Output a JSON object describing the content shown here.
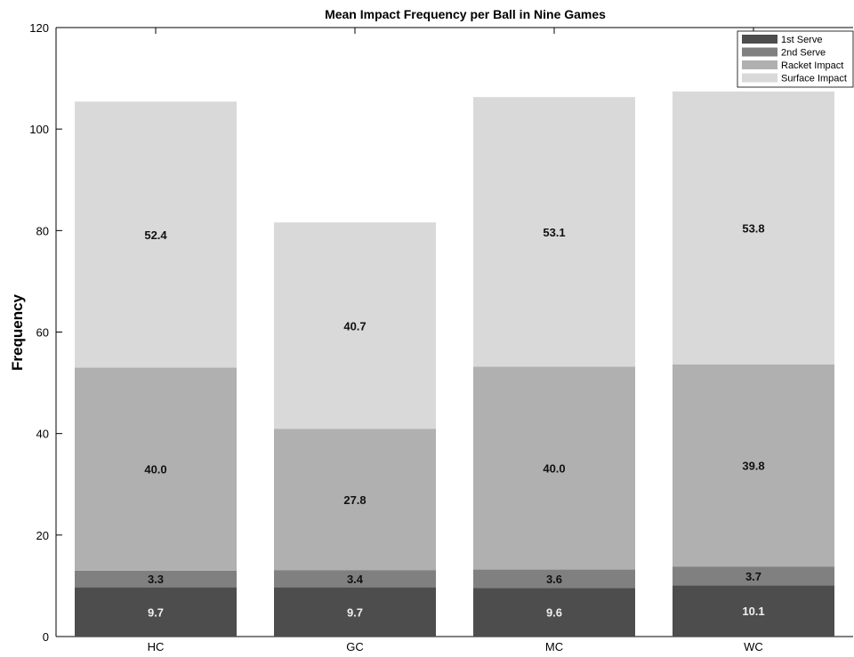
{
  "chart_data": {
    "type": "bar",
    "stacked": true,
    "title": "Mean Impact Frequency per Ball in Nine Games",
    "xlabel": "",
    "ylabel": "Frequency",
    "ylim": [
      0,
      120
    ],
    "yticks": [
      0,
      20,
      40,
      60,
      80,
      100,
      120
    ],
    "categories": [
      "HC",
      "GC",
      "MC",
      "WC"
    ],
    "series": [
      {
        "name": "1st Serve",
        "values": [
          9.7,
          9.7,
          9.6,
          10.1
        ],
        "labels": [
          "9.7",
          "9.7",
          "9.6",
          "10.1"
        ],
        "color": "#4d4d4d",
        "labelColor": "#f0f0f0"
      },
      {
        "name": "2nd Serve",
        "values": [
          3.3,
          3.4,
          3.6,
          3.7
        ],
        "labels": [
          "3.3",
          "3.4",
          "3.6",
          "3.7"
        ],
        "color": "#808080",
        "labelColor": "#111111"
      },
      {
        "name": "Racket Impact",
        "values": [
          40.0,
          27.8,
          40.0,
          39.8
        ],
        "labels": [
          "40.0",
          "27.8",
          "40.0",
          "39.8"
        ],
        "color": "#b0b0b0",
        "labelColor": "#111111"
      },
      {
        "name": "Surface Impact",
        "values": [
          52.4,
          40.7,
          53.1,
          53.8
        ],
        "labels": [
          "52.4",
          "40.7",
          "53.1",
          "53.8"
        ],
        "color": "#d9d9d9",
        "labelColor": "#111111"
      }
    ],
    "legend": "top-right",
    "grid": false
  }
}
